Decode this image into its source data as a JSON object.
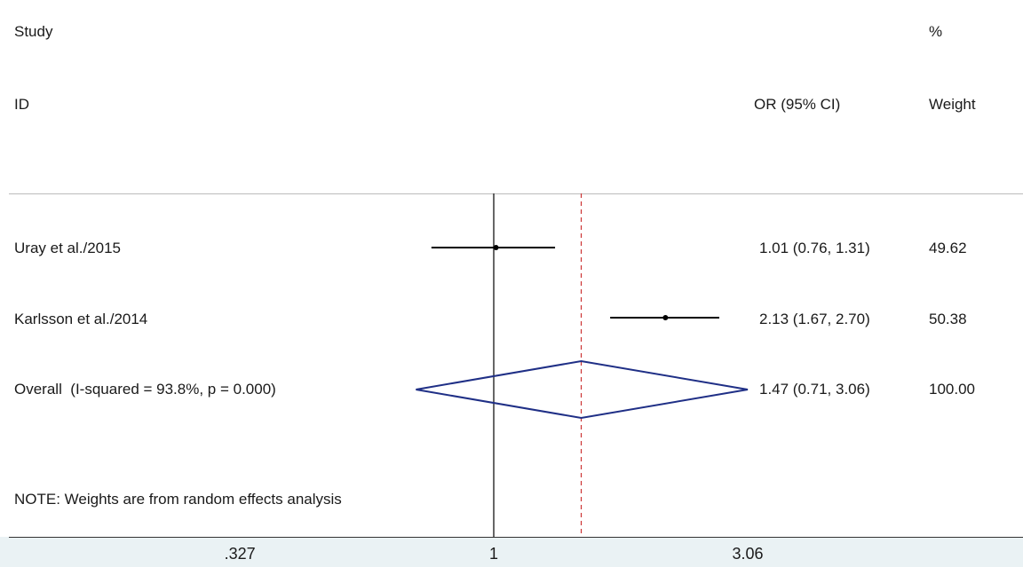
{
  "header": {
    "study_label": "Study",
    "id_label": "ID",
    "effect_label": "OR (95% CI)",
    "percent_label": "%",
    "weight_label": "Weight"
  },
  "note": "NOTE: Weights are from random effects analysis",
  "colors": {
    "study_marks": "#000000",
    "overall_diamond": "#1f2f86",
    "reference_line": "#333333",
    "overall_line": "#cc3333"
  },
  "chart_data": {
    "type": "forest",
    "scale": "log",
    "measure": "OR",
    "x_ticks": [
      0.327,
      1,
      3.06
    ],
    "x_tick_labels": [
      ".327",
      "1",
      "3.06"
    ],
    "null_line": 1,
    "overall_line": 1.47,
    "studies": [
      {
        "id": "Uray et al./2015",
        "or": 1.01,
        "lower": 0.76,
        "upper": 1.31,
        "ci_text": "1.01 (0.76, 1.31)",
        "weight": "49.62"
      },
      {
        "id": "Karlsson et al./2014",
        "or": 2.13,
        "lower": 1.67,
        "upper": 2.7,
        "ci_text": "2.13 (1.67, 2.70)",
        "weight": "50.38"
      }
    ],
    "overall": {
      "label": "Overall  (I-squared = 93.8%, p = 0.000)",
      "or": 1.47,
      "lower": 0.71,
      "upper": 3.06,
      "ci_text": "1.47 (0.71, 3.06)",
      "weight": "100.00"
    }
  }
}
